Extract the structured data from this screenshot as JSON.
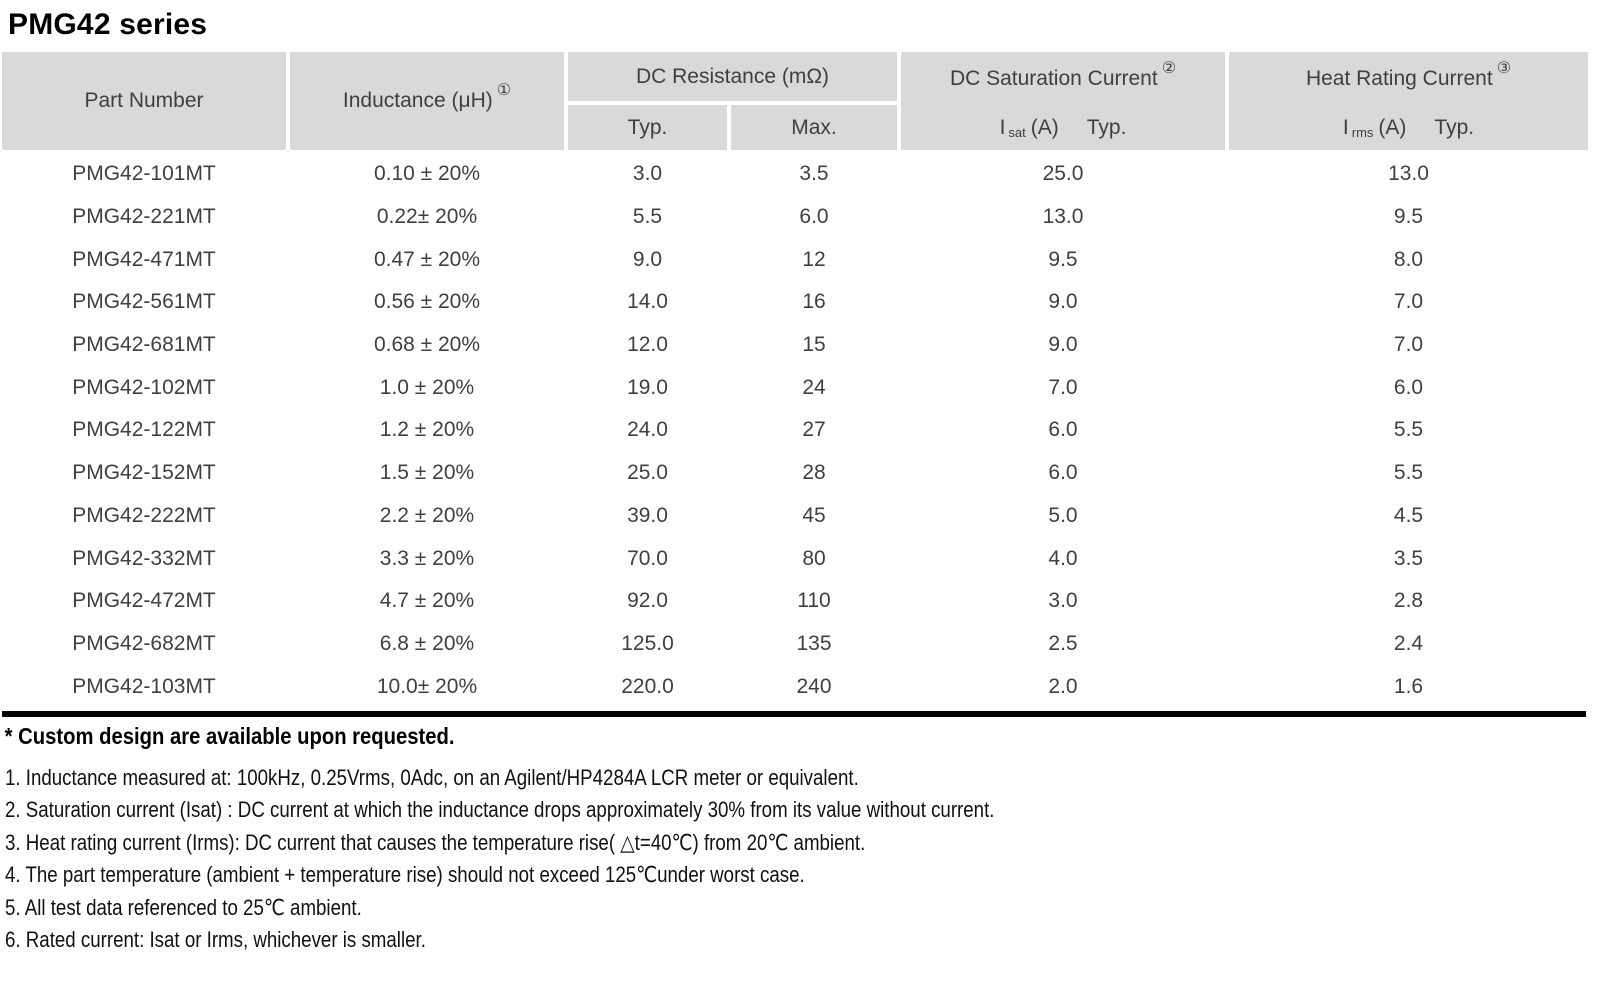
{
  "title": "PMG42 series",
  "colors": {
    "header_bg": "#d9d9d9",
    "header_text": "#3f3f3f",
    "body_text": "#404040",
    "rule": "#000000"
  },
  "table": {
    "header": {
      "part_number": "Part Number",
      "inductance_label": "Inductance (μH)",
      "inductance_sup": "①",
      "dc_resistance_label": "DC Resistance (mΩ)",
      "dc_resistance_typ": "Typ.",
      "dc_resistance_max": "Max.",
      "dc_saturation_label": "DC Saturation Current",
      "dc_saturation_sup": "②",
      "dc_saturation_symbol": "I",
      "dc_saturation_symbol_sub": "sat",
      "dc_saturation_unit": "(A)",
      "dc_saturation_typ": "Typ.",
      "heat_rating_label": "Heat Rating Current",
      "heat_rating_sup": "③",
      "heat_rating_symbol": "I",
      "heat_rating_symbol_sub": "rms",
      "heat_rating_unit": "(A)",
      "heat_rating_typ": "Typ."
    },
    "rows": [
      {
        "part": "PMG42-101MT",
        "inductance": "0.10 ± 20%",
        "rdc_typ": "3.0",
        "rdc_max": "3.5",
        "isat": "25.0",
        "irms": "13.0"
      },
      {
        "part": "PMG42-221MT",
        "inductance": "0.22± 20%",
        "rdc_typ": "5.5",
        "rdc_max": "6.0",
        "isat": "13.0",
        "irms": "9.5"
      },
      {
        "part": "PMG42-471MT",
        "inductance": "0.47 ± 20%",
        "rdc_typ": "9.0",
        "rdc_max": "12",
        "isat": "9.5",
        "irms": "8.0"
      },
      {
        "part": "PMG42-561MT",
        "inductance": "0.56 ± 20%",
        "rdc_typ": "14.0",
        "rdc_max": "16",
        "isat": "9.0",
        "irms": "7.0"
      },
      {
        "part": "PMG42-681MT",
        "inductance": "0.68 ± 20%",
        "rdc_typ": "12.0",
        "rdc_max": "15",
        "isat": "9.0",
        "irms": "7.0"
      },
      {
        "part": "PMG42-102MT",
        "inductance": "1.0 ± 20%",
        "rdc_typ": "19.0",
        "rdc_max": "24",
        "isat": "7.0",
        "irms": "6.0"
      },
      {
        "part": "PMG42-122MT",
        "inductance": "1.2 ± 20%",
        "rdc_typ": "24.0",
        "rdc_max": "27",
        "isat": "6.0",
        "irms": "5.5"
      },
      {
        "part": "PMG42-152MT",
        "inductance": "1.5 ± 20%",
        "rdc_typ": "25.0",
        "rdc_max": "28",
        "isat": "6.0",
        "irms": "5.5"
      },
      {
        "part": "PMG42-222MT",
        "inductance": "2.2 ± 20%",
        "rdc_typ": "39.0",
        "rdc_max": "45",
        "isat": "5.0",
        "irms": "4.5"
      },
      {
        "part": "PMG42-332MT",
        "inductance": "3.3 ± 20%",
        "rdc_typ": "70.0",
        "rdc_max": "80",
        "isat": "4.0",
        "irms": "3.5"
      },
      {
        "part": "PMG42-472MT",
        "inductance": "4.7 ± 20%",
        "rdc_typ": "92.0",
        "rdc_max": "110",
        "isat": "3.0",
        "irms": "2.8"
      },
      {
        "part": "PMG42-682MT",
        "inductance": "6.8 ± 20%",
        "rdc_typ": "125.0",
        "rdc_max": "135",
        "isat": "2.5",
        "irms": "2.4"
      },
      {
        "part": "PMG42-103MT",
        "inductance": "10.0± 20%",
        "rdc_typ": "220.0",
        "rdc_max": "240",
        "isat": "2.0",
        "irms": "1.6"
      }
    ]
  },
  "footer": {
    "custom_note": "* Custom design are available upon requested.",
    "notes": [
      "1. Inductance measured at: 100kHz, 0.25Vrms, 0Adc, on an Agilent/HP4284A LCR meter or equivalent.",
      "2. Saturation current (Isat) : DC current at which the inductance drops approximately 30% from its value without current.",
      "3. Heat rating current (Irms): DC current that causes the temperature rise( △t=40℃) from 20℃ ambient.",
      "4. The part temperature (ambient + temperature rise) should not exceed 125℃under worst case.",
      "5. All test data referenced to 25℃ ambient.",
      "6. Rated current: Isat or Irms, whichever is smaller."
    ]
  }
}
